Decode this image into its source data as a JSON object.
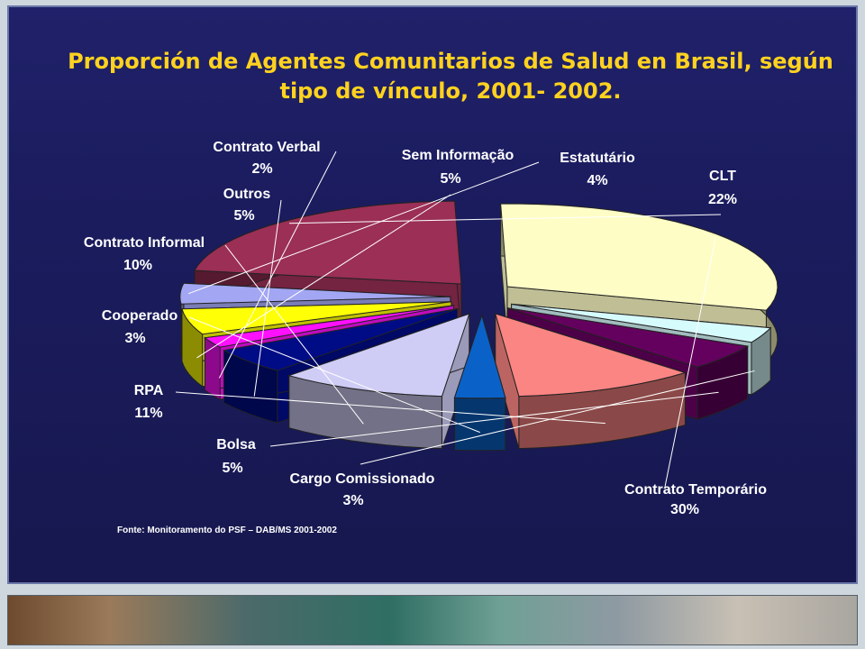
{
  "slide": {
    "title": "Proporción de Agentes Comunitarios de Salud en Brasil, según tipo de vínculo, 2001- 2002.",
    "source": "Fonte: Monitoramento do PSF – DAB/MS 2001-2002"
  },
  "chart_data": {
    "type": "pie",
    "style": "3d-exploded",
    "title": "Proporción de Agentes Comunitarios de Salud en Brasil, según tipo de vínculo, 2001- 2002.",
    "unit": "%",
    "slices": [
      {
        "label": "Estatutário",
        "value": 4,
        "value_label": "4%",
        "color": "#a3a6f2"
      },
      {
        "label": "CLT",
        "value": 22,
        "value_label": "22%",
        "color": "#9b2f56"
      },
      {
        "label": "Contrato Temporário",
        "value": 30,
        "value_label": "30%",
        "color": "#fefdc6"
      },
      {
        "label": "Cargo Comissionado",
        "value": 3,
        "value_label": "3%",
        "color": "#d6fbfd"
      },
      {
        "label": "Bolsa",
        "value": 5,
        "value_label": "5%",
        "color": "#64005e"
      },
      {
        "label": "RPA",
        "value": 11,
        "value_label": "11%",
        "color": "#fb8583"
      },
      {
        "label": "Cooperado",
        "value": 3,
        "value_label": "3%",
        "color": "#0a62c8"
      },
      {
        "label": "Contrato Informal",
        "value": 10,
        "value_label": "10%",
        "color": "#cfcdf5"
      },
      {
        "label": "Outros",
        "value": 5,
        "value_label": "5%",
        "color": "#000c86"
      },
      {
        "label": "Contrato Verbal",
        "value": 2,
        "value_label": "2%",
        "color": "#ff10ff"
      },
      {
        "label": "Sem Informação",
        "value": 5,
        "value_label": "5%",
        "color": "#ffff06"
      }
    ]
  }
}
